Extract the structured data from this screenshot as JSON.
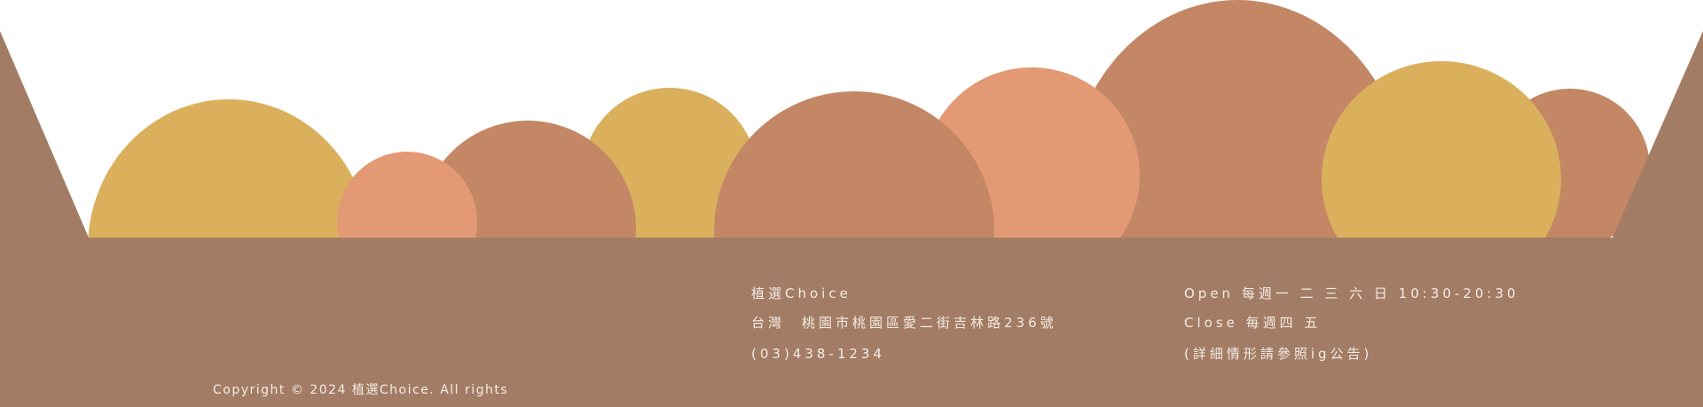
{
  "colors": {
    "background": "#ffffff",
    "footer_brown": "#a37c65",
    "mustard": "#dbb05d",
    "terracotta": "#c38766",
    "peach": "#e39a74",
    "text": "#f4ebe2"
  },
  "contact": {
    "store_name": "植選Choice",
    "address": "台灣　桃園市桃園區愛二街吉林路236號",
    "phone": "(03)438-1234"
  },
  "hours": {
    "open": "Open 每週一 二 三 六 日 10:30-20:30",
    "close": "Close 每週四 五",
    "note": "(詳細情形請參照ig公告)"
  },
  "footer": {
    "copyright": "Copyright © 2024 植選Choice. All rights"
  }
}
